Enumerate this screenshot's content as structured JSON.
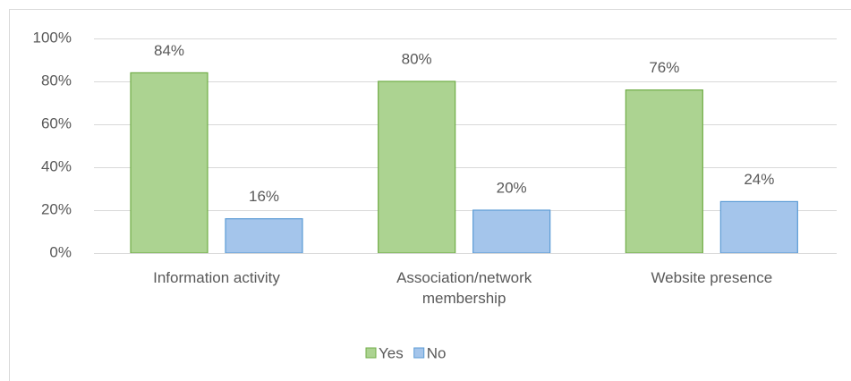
{
  "chart_data": {
    "type": "bar",
    "categories": [
      "Information activity",
      "Association/network membership",
      "Website presence"
    ],
    "series": [
      {
        "name": "Yes",
        "color": "#acd391",
        "stroke": "#70ad47",
        "values": [
          84,
          80,
          76
        ],
        "value_labels": [
          "84%",
          "80%",
          "76%"
        ]
      },
      {
        "name": "No",
        "color": "#a4c5eb",
        "stroke": "#5b9bd5",
        "values": [
          16,
          20,
          24
        ],
        "value_labels": [
          "16%",
          "20%",
          "24%"
        ]
      }
    ],
    "ylim": [
      0,
      100
    ],
    "yticks": [
      {
        "value": 0,
        "label": "0%"
      },
      {
        "value": 20,
        "label": "20%"
      },
      {
        "value": 40,
        "label": "40%"
      },
      {
        "value": 60,
        "label": "60%"
      },
      {
        "value": 80,
        "label": "80%"
      },
      {
        "value": 100,
        "label": "100%"
      }
    ],
    "grid": true,
    "legend": "bottom"
  }
}
